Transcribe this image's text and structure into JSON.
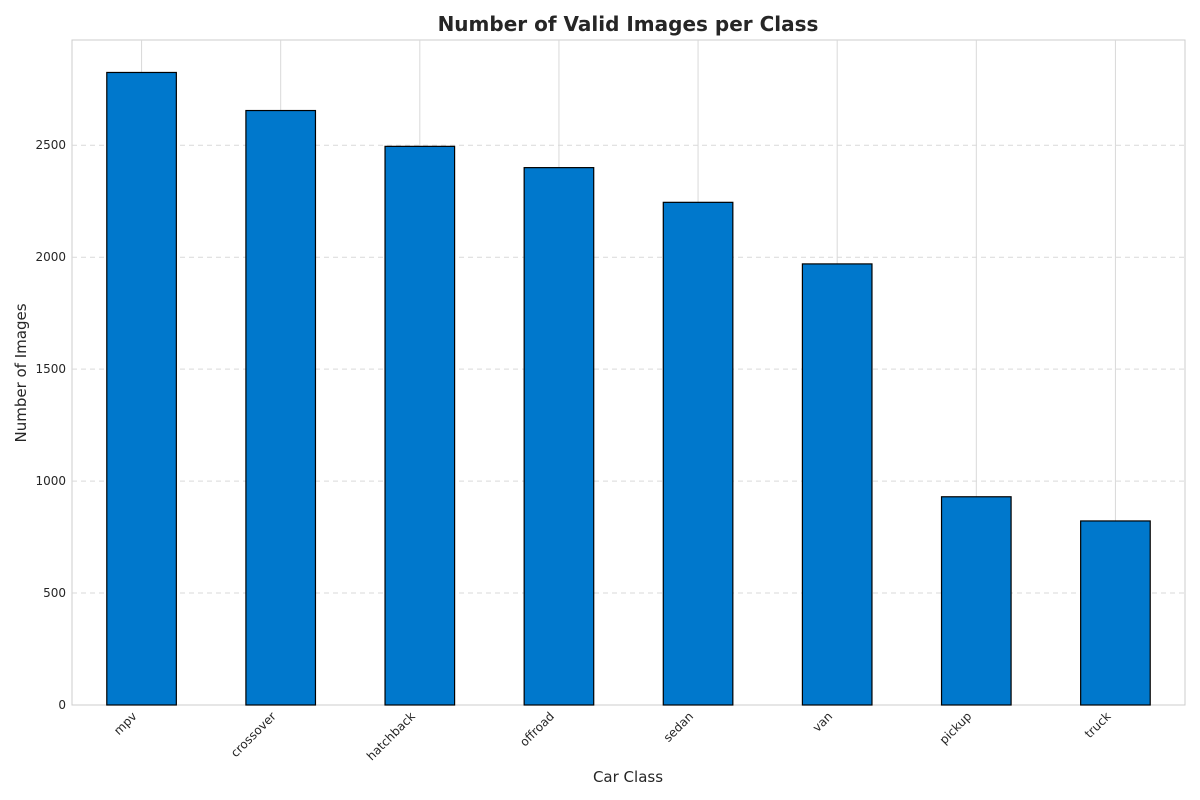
{
  "chart_data": {
    "type": "bar",
    "title": "Number of Valid Images per Class",
    "xlabel": "Car Class",
    "ylabel": "Number of Images",
    "categories": [
      "mpv",
      "crossover",
      "hatchback",
      "offroad",
      "sedan",
      "van",
      "pickup",
      "truck"
    ],
    "values": [
      2825,
      2655,
      2495,
      2400,
      2245,
      1970,
      930,
      822
    ],
    "ylim": [
      0,
      2970
    ],
    "yticks": [
      0,
      500,
      1000,
      1500,
      2000,
      2500
    ],
    "grid": {
      "x": true,
      "y": true,
      "y_style": "dashed"
    },
    "x_tick_rotation": "45 degrees",
    "colors": {
      "bar_fill": "#0078cc",
      "bar_edge": "#000000",
      "grid": "#d9d9d9",
      "frame": "#cccccc",
      "text": "#262626"
    }
  }
}
